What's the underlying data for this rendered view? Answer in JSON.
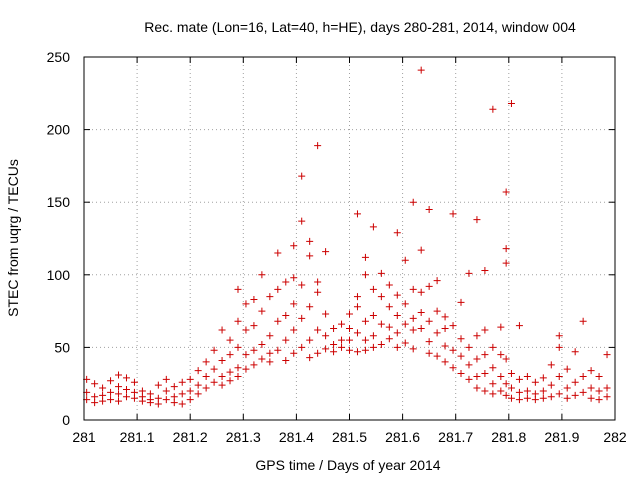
{
  "chart_data": {
    "type": "scatter",
    "title": "Rec. mate (Lon=16, Lat=40, h=HE), days 280-281, 2014, window 004",
    "xlabel": "GPS time / Days of year 2014",
    "ylabel": "STEC from uqrg / TECUs",
    "xlim": [
      281,
      282
    ],
    "ylim": [
      0,
      250
    ],
    "xticks": [
      "281",
      "281.1",
      "281.2",
      "281.3",
      "281.4",
      "281.5",
      "281.6",
      "281.7",
      "281.8",
      "281.9",
      "282"
    ],
    "xtick_values": [
      281,
      281.1,
      281.2,
      281.3,
      281.4,
      281.5,
      281.6,
      281.7,
      281.8,
      281.9,
      282
    ],
    "yticks": [
      "0",
      "50",
      "100",
      "150",
      "200",
      "250"
    ],
    "ytick_values": [
      0,
      50,
      100,
      150,
      200,
      250
    ],
    "grid": true,
    "marker": "+",
    "marker_color": "#cc0000",
    "series": [
      {
        "name": "STEC",
        "points": [
          [
            281.005,
            28
          ],
          [
            281.005,
            19
          ],
          [
            281.005,
            14
          ],
          [
            281.02,
            25
          ],
          [
            281.02,
            16
          ],
          [
            281.02,
            12
          ],
          [
            281.035,
            22
          ],
          [
            281.035,
            17
          ],
          [
            281.035,
            13
          ],
          [
            281.05,
            27
          ],
          [
            281.05,
            19
          ],
          [
            281.05,
            14
          ],
          [
            281.065,
            31
          ],
          [
            281.065,
            23
          ],
          [
            281.065,
            18
          ],
          [
            281.065,
            13
          ],
          [
            281.08,
            29
          ],
          [
            281.08,
            21
          ],
          [
            281.08,
            16
          ],
          [
            281.095,
            26
          ],
          [
            281.095,
            19
          ],
          [
            281.095,
            15
          ],
          [
            281.11,
            20
          ],
          [
            281.11,
            16
          ],
          [
            281.11,
            13
          ],
          [
            281.125,
            18
          ],
          [
            281.125,
            14
          ],
          [
            281.125,
            12
          ],
          [
            281.14,
            24
          ],
          [
            281.14,
            15
          ],
          [
            281.14,
            11
          ],
          [
            281.155,
            28
          ],
          [
            281.155,
            20
          ],
          [
            281.155,
            14
          ],
          [
            281.17,
            23
          ],
          [
            281.17,
            16
          ],
          [
            281.17,
            12
          ],
          [
            281.185,
            26
          ],
          [
            281.185,
            18
          ],
          [
            281.185,
            11
          ],
          [
            281.2,
            28
          ],
          [
            281.2,
            20
          ],
          [
            281.2,
            14
          ],
          [
            281.215,
            34
          ],
          [
            281.215,
            24
          ],
          [
            281.215,
            18
          ],
          [
            281.23,
            40
          ],
          [
            281.23,
            30
          ],
          [
            281.23,
            22
          ],
          [
            281.245,
            48
          ],
          [
            281.245,
            35
          ],
          [
            281.245,
            26
          ],
          [
            281.26,
            62
          ],
          [
            281.26,
            41
          ],
          [
            281.26,
            30
          ],
          [
            281.26,
            24
          ],
          [
            281.275,
            55
          ],
          [
            281.275,
            45
          ],
          [
            281.275,
            33
          ],
          [
            281.275,
            27
          ],
          [
            281.29,
            90
          ],
          [
            281.29,
            68
          ],
          [
            281.29,
            50
          ],
          [
            281.29,
            36
          ],
          [
            281.29,
            30
          ],
          [
            281.305,
            80
          ],
          [
            281.305,
            62
          ],
          [
            281.305,
            45
          ],
          [
            281.305,
            35
          ],
          [
            281.32,
            83
          ],
          [
            281.32,
            65
          ],
          [
            281.32,
            48
          ],
          [
            281.32,
            38
          ],
          [
            281.335,
            100
          ],
          [
            281.335,
            75
          ],
          [
            281.335,
            52
          ],
          [
            281.335,
            42
          ],
          [
            281.35,
            85
          ],
          [
            281.35,
            58
          ],
          [
            281.35,
            46
          ],
          [
            281.35,
            40
          ],
          [
            281.365,
            115
          ],
          [
            281.365,
            90
          ],
          [
            281.365,
            68
          ],
          [
            281.365,
            48
          ],
          [
            281.38,
            95
          ],
          [
            281.38,
            72
          ],
          [
            281.38,
            55
          ],
          [
            281.38,
            41
          ],
          [
            281.395,
            120
          ],
          [
            281.395,
            98
          ],
          [
            281.395,
            80
          ],
          [
            281.395,
            62
          ],
          [
            281.395,
            46
          ],
          [
            281.41,
            168
          ],
          [
            281.41,
            137
          ],
          [
            281.41,
            93
          ],
          [
            281.41,
            70
          ],
          [
            281.41,
            50
          ],
          [
            281.425,
            123
          ],
          [
            281.425,
            113
          ],
          [
            281.425,
            78
          ],
          [
            281.425,
            55
          ],
          [
            281.425,
            43
          ],
          [
            281.44,
            189
          ],
          [
            281.44,
            95
          ],
          [
            281.44,
            88
          ],
          [
            281.44,
            62
          ],
          [
            281.44,
            46
          ],
          [
            281.455,
            116
          ],
          [
            281.455,
            73
          ],
          [
            281.455,
            58
          ],
          [
            281.455,
            49
          ],
          [
            281.47,
            63
          ],
          [
            281.47,
            52
          ],
          [
            281.47,
            47
          ],
          [
            281.485,
            66
          ],
          [
            281.485,
            55
          ],
          [
            281.485,
            50
          ],
          [
            281.5,
            73
          ],
          [
            281.5,
            63
          ],
          [
            281.5,
            55
          ],
          [
            281.5,
            48
          ],
          [
            281.515,
            142
          ],
          [
            281.515,
            85
          ],
          [
            281.515,
            78
          ],
          [
            281.515,
            60
          ],
          [
            281.515,
            47
          ],
          [
            281.53,
            112
          ],
          [
            281.53,
            100
          ],
          [
            281.53,
            68
          ],
          [
            281.53,
            55
          ],
          [
            281.53,
            48
          ],
          [
            281.545,
            133
          ],
          [
            281.545,
            90
          ],
          [
            281.545,
            72
          ],
          [
            281.545,
            58
          ],
          [
            281.545,
            50
          ],
          [
            281.56,
            101
          ],
          [
            281.56,
            85
          ],
          [
            281.56,
            66
          ],
          [
            281.56,
            52
          ],
          [
            281.575,
            93
          ],
          [
            281.575,
            78
          ],
          [
            281.575,
            64
          ],
          [
            281.575,
            56
          ],
          [
            281.59,
            129
          ],
          [
            281.59,
            86
          ],
          [
            281.59,
            72
          ],
          [
            281.59,
            60
          ],
          [
            281.59,
            50
          ],
          [
            281.605,
            110
          ],
          [
            281.605,
            80
          ],
          [
            281.605,
            66
          ],
          [
            281.605,
            53
          ],
          [
            281.62,
            150
          ],
          [
            281.62,
            90
          ],
          [
            281.62,
            70
          ],
          [
            281.62,
            62
          ],
          [
            281.62,
            49
          ],
          [
            281.635,
            241
          ],
          [
            281.635,
            117
          ],
          [
            281.635,
            88
          ],
          [
            281.635,
            74
          ],
          [
            281.635,
            63
          ],
          [
            281.65,
            145
          ],
          [
            281.65,
            92
          ],
          [
            281.65,
            68
          ],
          [
            281.65,
            54
          ],
          [
            281.65,
            46
          ],
          [
            281.665,
            96
          ],
          [
            281.665,
            75
          ],
          [
            281.665,
            60
          ],
          [
            281.665,
            44
          ],
          [
            281.68,
            71
          ],
          [
            281.68,
            63
          ],
          [
            281.68,
            51
          ],
          [
            281.68,
            40
          ],
          [
            281.695,
            142
          ],
          [
            281.695,
            65
          ],
          [
            281.695,
            48
          ],
          [
            281.695,
            36
          ],
          [
            281.71,
            81
          ],
          [
            281.71,
            56
          ],
          [
            281.71,
            44
          ],
          [
            281.71,
            32
          ],
          [
            281.725,
            101
          ],
          [
            281.725,
            50
          ],
          [
            281.725,
            38
          ],
          [
            281.725,
            28
          ],
          [
            281.74,
            138
          ],
          [
            281.74,
            58
          ],
          [
            281.74,
            42
          ],
          [
            281.74,
            30
          ],
          [
            281.74,
            22
          ],
          [
            281.755,
            103
          ],
          [
            281.755,
            62
          ],
          [
            281.755,
            45
          ],
          [
            281.755,
            32
          ],
          [
            281.755,
            20
          ],
          [
            281.77,
            214
          ],
          [
            281.77,
            50
          ],
          [
            281.77,
            36
          ],
          [
            281.77,
            25
          ],
          [
            281.77,
            18
          ],
          [
            281.785,
            64
          ],
          [
            281.785,
            45
          ],
          [
            281.785,
            30
          ],
          [
            281.785,
            20
          ],
          [
            281.795,
            157
          ],
          [
            281.795,
            118
          ],
          [
            281.795,
            108
          ],
          [
            281.795,
            42
          ],
          [
            281.795,
            25
          ],
          [
            281.795,
            17
          ],
          [
            281.805,
            218
          ],
          [
            281.805,
            32
          ],
          [
            281.805,
            22
          ],
          [
            281.805,
            15
          ],
          [
            281.82,
            65
          ],
          [
            281.82,
            28
          ],
          [
            281.82,
            19
          ],
          [
            281.82,
            14
          ],
          [
            281.835,
            30
          ],
          [
            281.835,
            20
          ],
          [
            281.835,
            15
          ],
          [
            281.85,
            26
          ],
          [
            281.85,
            18
          ],
          [
            281.85,
            14
          ],
          [
            281.865,
            29
          ],
          [
            281.865,
            20
          ],
          [
            281.865,
            15
          ],
          [
            281.88,
            38
          ],
          [
            281.88,
            24
          ],
          [
            281.88,
            16
          ],
          [
            281.895,
            58
          ],
          [
            281.895,
            50
          ],
          [
            281.895,
            30
          ],
          [
            281.895,
            18
          ],
          [
            281.91,
            35
          ],
          [
            281.91,
            22
          ],
          [
            281.91,
            15
          ],
          [
            281.925,
            47
          ],
          [
            281.925,
            26
          ],
          [
            281.925,
            17
          ],
          [
            281.94,
            68
          ],
          [
            281.94,
            30
          ],
          [
            281.94,
            19
          ],
          [
            281.955,
            34
          ],
          [
            281.955,
            22
          ],
          [
            281.955,
            15
          ],
          [
            281.97,
            30
          ],
          [
            281.97,
            20
          ],
          [
            281.97,
            14
          ],
          [
            281.985,
            45
          ],
          [
            281.985,
            22
          ],
          [
            281.985,
            16
          ]
        ]
      }
    ]
  }
}
